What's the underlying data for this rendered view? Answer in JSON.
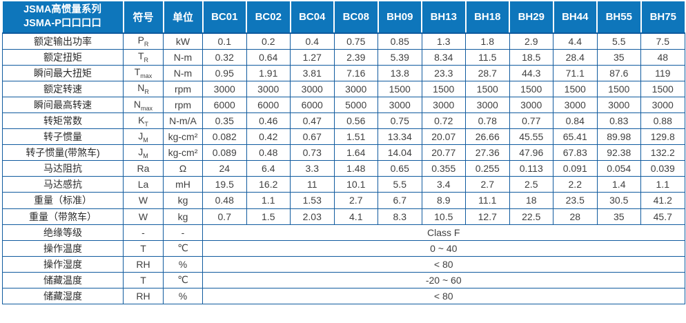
{
  "colors": {
    "header_bg": "#0E76BB",
    "border": "#0F5A9E",
    "header_text": "#FFFFFF",
    "body_text": "#3F3F3F"
  },
  "table": {
    "header": {
      "series_line1": "JSMA高惯量系列",
      "series_line2": "JSMA-P口口口口",
      "symbol_col": "符号",
      "unit_col": "单位",
      "models": [
        "BC01",
        "BC02",
        "BC04",
        "BC08",
        "BH09",
        "BH13",
        "BH18",
        "BH29",
        "BH44",
        "BH55",
        "BH75"
      ]
    },
    "rows": [
      {
        "label": "额定输出功率",
        "symbol": {
          "base": "P",
          "sub": "R"
        },
        "unit": "kW",
        "values": [
          "0.1",
          "0.2",
          "0.4",
          "0.75",
          "0.85",
          "1.3",
          "1.8",
          "2.9",
          "4.4",
          "5.5",
          "7.5"
        ]
      },
      {
        "label": "额定扭矩",
        "symbol": {
          "base": "T",
          "sub": "R"
        },
        "unit": "N-m",
        "values": [
          "0.32",
          "0.64",
          "1.27",
          "2.39",
          "5.39",
          "8.34",
          "11.5",
          "18.5",
          "28.4",
          "35",
          "48"
        ]
      },
      {
        "label": "瞬间最大扭矩",
        "symbol": {
          "base": "T",
          "sub": "max"
        },
        "unit": "N-m",
        "values": [
          "0.95",
          "1.91",
          "3.81",
          "7.16",
          "13.8",
          "23.3",
          "28.7",
          "44.3",
          "71.1",
          "87.6",
          "119"
        ]
      },
      {
        "label": "额定转速",
        "symbol": {
          "base": "N",
          "sub": "R"
        },
        "unit": "rpm",
        "values": [
          "3000",
          "3000",
          "3000",
          "3000",
          "1500",
          "1500",
          "1500",
          "1500",
          "1500",
          "1500",
          "1500"
        ]
      },
      {
        "label": "瞬间最高转速",
        "symbol": {
          "base": "N",
          "sub": "max"
        },
        "unit": "rpm",
        "values": [
          "6000",
          "6000",
          "6000",
          "5000",
          "3000",
          "3000",
          "3000",
          "3000",
          "3000",
          "3000",
          "3000"
        ]
      },
      {
        "label": "转矩常数",
        "symbol": {
          "base": "K",
          "sub": "T"
        },
        "unit": "N-m/A",
        "values": [
          "0.35",
          "0.46",
          "0.47",
          "0.56",
          "0.75",
          "0.72",
          "0.78",
          "0.77",
          "0.84",
          "0.83",
          "0.88"
        ]
      },
      {
        "label": "转子惯量",
        "symbol": {
          "base": "J",
          "sub": "M"
        },
        "unit": "kg-cm²",
        "values": [
          "0.082",
          "0.42",
          "0.67",
          "1.51",
          "13.34",
          "20.07",
          "26.66",
          "45.55",
          "65.41",
          "89.98",
          "129.8"
        ]
      },
      {
        "label": "转子惯量(带煞车)",
        "symbol": {
          "base": "J",
          "sub": "M"
        },
        "unit": "kg-cm²",
        "values": [
          "0.089",
          "0.48",
          "0.73",
          "1.64",
          "14.04",
          "20.77",
          "27.36",
          "47.96",
          "67.83",
          "92.38",
          "132.2"
        ]
      },
      {
        "label": "马达阻抗",
        "symbol": {
          "base": "Ra"
        },
        "unit": "Ω",
        "values": [
          "24",
          "6.4",
          "3.3",
          "1.48",
          "0.65",
          "0.355",
          "0.255",
          "0.113",
          "0.091",
          "0.054",
          "0.039"
        ]
      },
      {
        "label": "马达感抗",
        "symbol": {
          "base": "La"
        },
        "unit": "mH",
        "values": [
          "19.5",
          "16.2",
          "11",
          "10.1",
          "5.5",
          "3.4",
          "2.7",
          "2.5",
          "2.2",
          "1.4",
          "1.1"
        ]
      },
      {
        "label": "重量（标准）",
        "symbol": {
          "base": "W"
        },
        "unit": "kg",
        "values": [
          "0.48",
          "1.1",
          "1.53",
          "2.7",
          "6.7",
          "8.9",
          "11.1",
          "18",
          "23.5",
          "30.5",
          "41.2"
        ]
      },
      {
        "label": "重量（带煞车）",
        "symbol": {
          "base": "W"
        },
        "unit": "kg",
        "values": [
          "0.7",
          "1.5",
          "2.03",
          "4.1",
          "8.3",
          "10.5",
          "12.7",
          "22.5",
          "28",
          "35",
          "45.7"
        ]
      },
      {
        "label": "绝缘等级",
        "symbol": {
          "base": "-"
        },
        "unit": "-",
        "merged": "Class F"
      },
      {
        "label": "操作温度",
        "symbol": {
          "base": "T"
        },
        "unit": "℃",
        "merged": "0 ~ 40"
      },
      {
        "label": "操作湿度",
        "symbol": {
          "base": "RH"
        },
        "unit": "%",
        "merged": "< 80"
      },
      {
        "label": "储藏温度",
        "symbol": {
          "base": "T"
        },
        "unit": "℃",
        "merged": "-20 ~ 60"
      },
      {
        "label": "储藏湿度",
        "symbol": {
          "base": "RH"
        },
        "unit": "%",
        "merged": "< 80"
      }
    ]
  }
}
